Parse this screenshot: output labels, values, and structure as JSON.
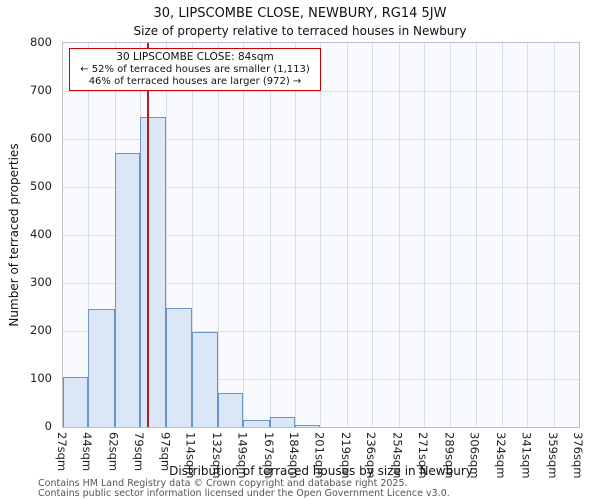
{
  "title": "30, LIPSCOMBE CLOSE, NEWBURY, RG14 5JW",
  "subtitle": "Size of property relative to terraced houses in Newbury",
  "annotation": {
    "line1": "30 LIPSCOMBE CLOSE: 84sqm",
    "line2": "← 52% of terraced houses are smaller (1,113)",
    "line3": "46% of terraced houses are larger (972) →"
  },
  "footer": {
    "line1": "Contains HM Land Registry data © Crown copyright and database right 2025.",
    "line2": "Contains public sector information licensed under the Open Government Licence v3.0."
  },
  "chart_data": {
    "type": "bar",
    "title": "30, LIPSCOMBE CLOSE, NEWBURY, RG14 5JW — Size of property relative to terraced houses in Newbury",
    "xlabel": "Distribution of terraced houses by size in Newbury",
    "ylabel": "Number of terraced properties",
    "categories": [
      "27sqm",
      "44sqm",
      "62sqm",
      "79sqm",
      "97sqm",
      "114sqm",
      "132sqm",
      "149sqm",
      "167sqm",
      "184sqm",
      "201sqm",
      "219sqm",
      "236sqm",
      "254sqm",
      "271sqm",
      "289sqm",
      "306sqm",
      "324sqm",
      "341sqm",
      "359sqm",
      "376sqm"
    ],
    "bin_edges_sqm": [
      27,
      44,
      62,
      79,
      97,
      114,
      132,
      149,
      167,
      184,
      201,
      219,
      236,
      254,
      271,
      289,
      306,
      324,
      341,
      359,
      376
    ],
    "values": [
      105,
      245,
      570,
      645,
      248,
      197,
      70,
      15,
      20,
      5,
      0,
      0,
      0,
      0,
      0,
      0,
      0,
      0,
      0,
      0
    ],
    "ylim": [
      0,
      800
    ],
    "ytick_step": 100,
    "grid": true,
    "legend": "none",
    "marker_sqm": 84,
    "colors": {
      "bar_fill": "#dbe6f6",
      "bar_edge": "#6e93c4",
      "marker_line": "#aa2222",
      "annotation_border": "#cc0000",
      "grid": "#d9dde6"
    }
  }
}
